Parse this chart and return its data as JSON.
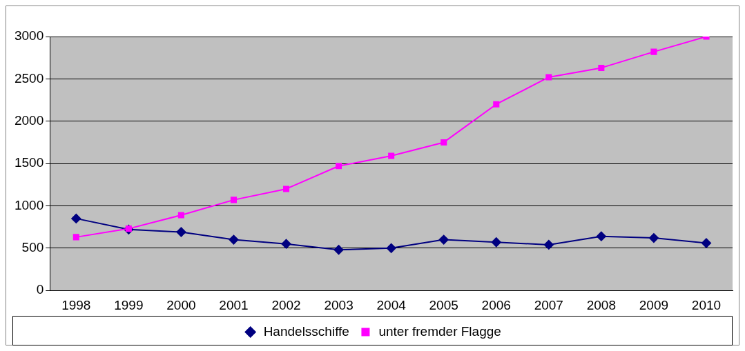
{
  "chart_data": {
    "type": "line",
    "categories": [
      "1998",
      "1999",
      "2000",
      "2001",
      "2002",
      "2003",
      "2004",
      "2005",
      "2006",
      "2007",
      "2008",
      "2009",
      "2010"
    ],
    "series": [
      {
        "name": "Handelsschiffe",
        "color": "#000080",
        "marker": "diamond",
        "values": [
          850,
          720,
          690,
          600,
          550,
          480,
          500,
          600,
          570,
          540,
          640,
          620,
          560
        ]
      },
      {
        "name": "unter fremder Flagge",
        "color": "#ff00ff",
        "marker": "square",
        "values": [
          630,
          730,
          890,
          1070,
          1200,
          1470,
          1590,
          1750,
          2200,
          2520,
          2630,
          2820,
          3000
        ]
      }
    ],
    "ylim": [
      0,
      3000
    ],
    "yticks": [
      0,
      500,
      1000,
      1500,
      2000,
      2500,
      3000
    ],
    "grid": "y",
    "legend": "bottom",
    "line_style": "solid"
  }
}
